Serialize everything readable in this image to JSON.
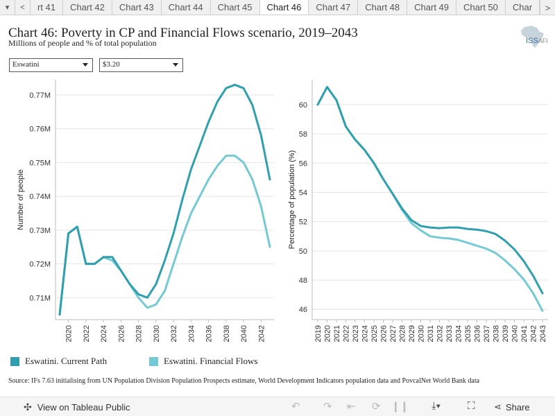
{
  "tabs": {
    "prev_arrow": "<",
    "next_arrow": ">",
    "menu_arrow": "▾",
    "items": [
      "rt 41",
      "Chart 42",
      "Chart 43",
      "Chart 44",
      "Chart 45",
      "Chart 46",
      "Chart 47",
      "Chart 48",
      "Chart 49",
      "Chart 50",
      "Char"
    ],
    "active_index": 5
  },
  "header": {
    "title": "Chart 46: Poverty in CP and Financial Flows scenario, 2019–2043",
    "subtitle": "Millions of people and % of total population"
  },
  "logo": {
    "text": "ISS",
    "suffix": "AFI"
  },
  "filters": {
    "country": "Eswatini",
    "poverty_line": "$3.20"
  },
  "colors": {
    "current_path": "#2e9fae",
    "financial_flows": "#73cad4"
  },
  "chart_data": [
    {
      "type": "line",
      "ylabel": "Number of people",
      "xlabel": "",
      "x": [
        2019,
        2020,
        2021,
        2022,
        2023,
        2024,
        2025,
        2026,
        2027,
        2028,
        2029,
        2030,
        2031,
        2032,
        2033,
        2034,
        2035,
        2036,
        2037,
        2038,
        2039,
        2040,
        2041,
        2042,
        2043
      ],
      "x_ticks": [
        "2020",
        "2022",
        "2024",
        "2026",
        "2028",
        "2030",
        "2032",
        "2034",
        "2036",
        "2038",
        "2040",
        "2042"
      ],
      "y_ticks": [
        "0.71M",
        "0.72M",
        "0.73M",
        "0.74M",
        "0.75M",
        "0.76M",
        "0.77M"
      ],
      "ylim": [
        0.7035,
        0.7745
      ],
      "series": [
        {
          "name": "Eswatini. Current Path",
          "values": [
            0.705,
            0.729,
            0.731,
            0.72,
            0.72,
            0.722,
            0.722,
            0.718,
            0.714,
            0.711,
            0.71,
            0.714,
            0.721,
            0.729,
            0.739,
            0.748,
            0.755,
            0.762,
            0.768,
            0.772,
            0.773,
            0.772,
            0.767,
            0.758,
            0.745
          ]
        },
        {
          "name": "Eswatini. Financial Flows",
          "values": [
            0.705,
            0.729,
            0.731,
            0.72,
            0.72,
            0.722,
            0.721,
            0.718,
            0.714,
            0.71,
            0.707,
            0.708,
            0.712,
            0.72,
            0.728,
            0.735,
            0.74,
            0.745,
            0.749,
            0.752,
            0.752,
            0.75,
            0.745,
            0.737,
            0.725
          ]
        }
      ]
    },
    {
      "type": "line",
      "ylabel": "Percentage of population (%)",
      "xlabel": "",
      "x": [
        2019,
        2020,
        2021,
        2022,
        2023,
        2024,
        2025,
        2026,
        2027,
        2028,
        2029,
        2030,
        2031,
        2032,
        2033,
        2034,
        2035,
        2036,
        2037,
        2038,
        2039,
        2040,
        2041,
        2042,
        2043
      ],
      "x_ticks": [
        "2019",
        "2020",
        "2021",
        "2022",
        "2023",
        "2024",
        "2025",
        "2026",
        "2027",
        "2028",
        "2029",
        "2030",
        "2031",
        "2032",
        "2033",
        "2034",
        "2035",
        "2036",
        "2037",
        "2038",
        "2039",
        "2040",
        "2041",
        "2042",
        "2043"
      ],
      "y_ticks": [
        "46",
        "48",
        "50",
        "52",
        "54",
        "56",
        "58",
        "60"
      ],
      "ylim": [
        45.3,
        61.7
      ],
      "series": [
        {
          "name": "Eswatini. Current Path",
          "values": [
            60.0,
            61.2,
            60.3,
            58.5,
            57.6,
            56.9,
            56.0,
            54.9,
            53.9,
            52.9,
            52.1,
            51.7,
            51.6,
            51.55,
            51.6,
            51.6,
            51.5,
            51.45,
            51.35,
            51.15,
            50.7,
            50.1,
            49.3,
            48.3,
            47.1
          ]
        },
        {
          "name": "Eswatini. Financial Flows",
          "values": [
            60.0,
            61.2,
            60.3,
            58.5,
            57.6,
            56.9,
            56.0,
            54.9,
            53.9,
            52.8,
            51.9,
            51.4,
            51.0,
            50.9,
            50.85,
            50.75,
            50.55,
            50.35,
            50.15,
            49.85,
            49.35,
            48.75,
            48.05,
            47.1,
            45.9
          ]
        }
      ]
    }
  ],
  "legend": [
    {
      "label": "Eswatini. Current Path"
    },
    {
      "label": "Eswatini. Financial Flows"
    }
  ],
  "source": "Source: IFs 7.63 initialising from UN Population Division Population Prospects estimate, World Development Indicators population data and PovcalNet World Bank data",
  "footer": {
    "view_label": "View on Tableau Public",
    "share_label": "Share"
  }
}
